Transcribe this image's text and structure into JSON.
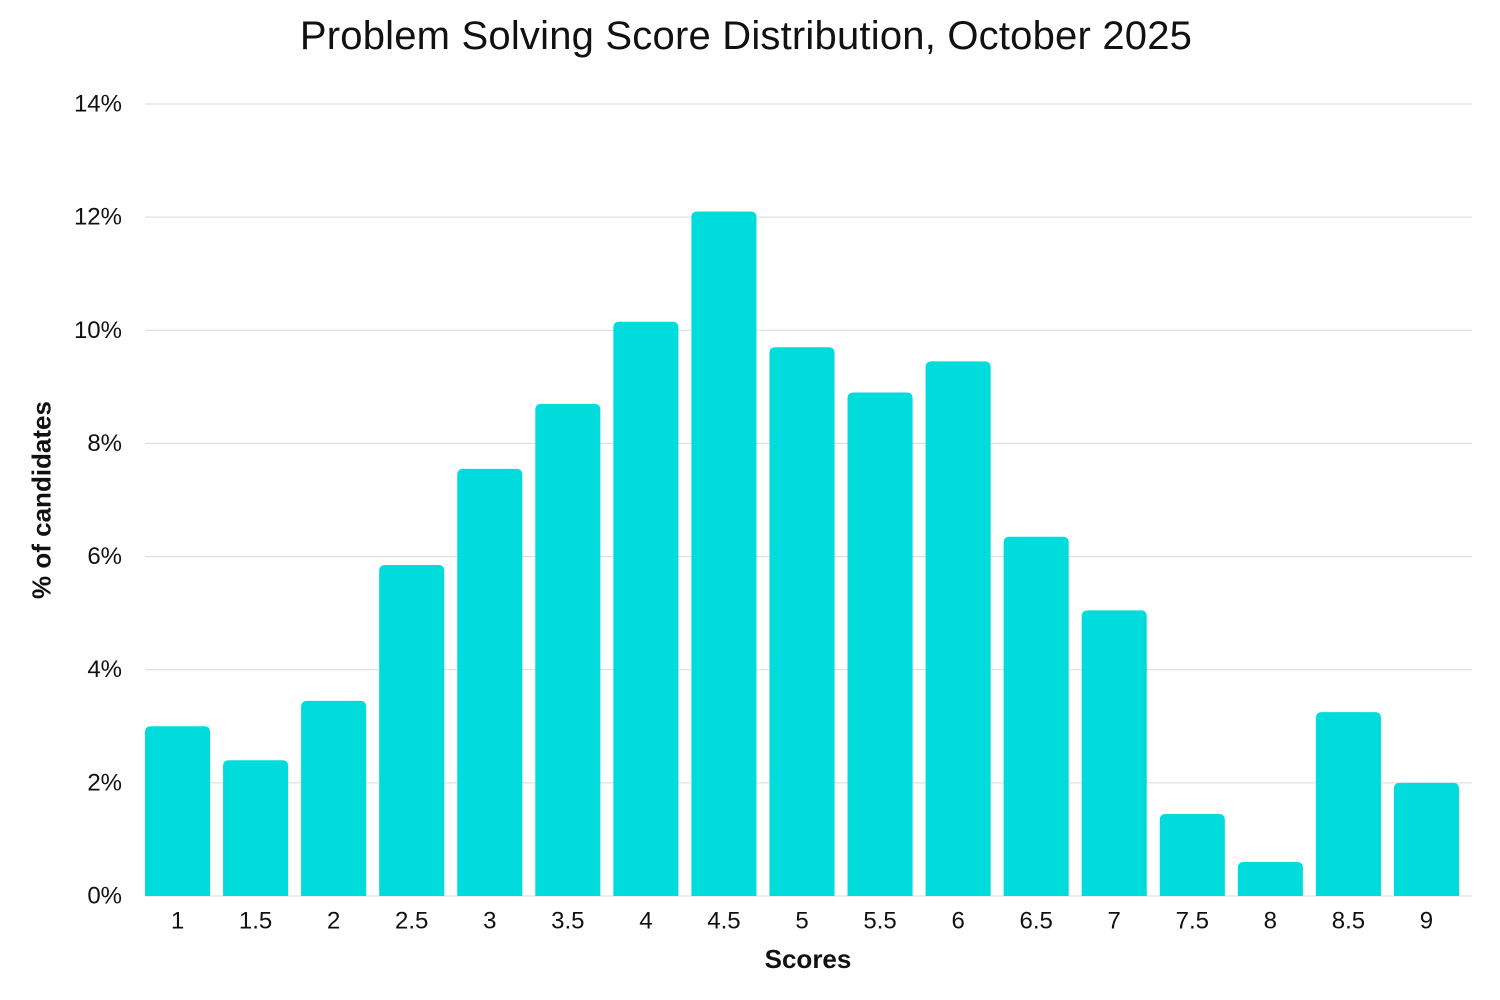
{
  "chart_data": {
    "type": "bar",
    "title": "Problem Solving Score Distribution, October 2025",
    "xlabel": "Scores",
    "ylabel": "% of candidates",
    "categories": [
      "1",
      "1.5",
      "2",
      "2.5",
      "3",
      "3.5",
      "4",
      "4.5",
      "5",
      "5.5",
      "6",
      "6.5",
      "7",
      "7.5",
      "8",
      "8.5",
      "9"
    ],
    "values": [
      3.0,
      2.4,
      3.45,
      5.85,
      7.55,
      8.7,
      10.15,
      12.1,
      9.7,
      8.9,
      9.45,
      6.35,
      5.05,
      1.45,
      0.6,
      3.25,
      2.0
    ],
    "ylim": [
      0,
      14
    ],
    "yticks": [
      0,
      2,
      4,
      6,
      8,
      10,
      12,
      14
    ],
    "ytick_labels": [
      "0%",
      "2%",
      "4%",
      "6%",
      "8%",
      "10%",
      "12%",
      "14%"
    ],
    "grid": true,
    "legend": "none",
    "bar_color": "#00dcdc",
    "grid_color": "#d9d9d9"
  }
}
